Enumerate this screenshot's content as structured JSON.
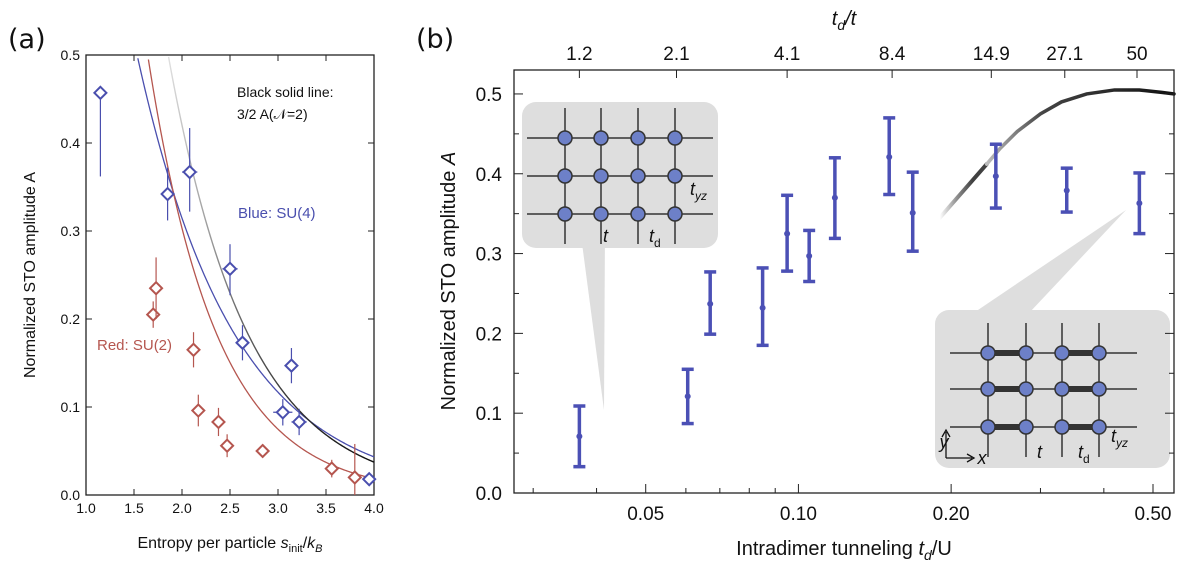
{
  "chart_data": [
    {
      "panel": "(a)",
      "type": "scatter",
      "xlabel_main": "Entropy per particle ",
      "xlabel_s": "s",
      "xlabel_sub": "init",
      "xlabel_slash": "/",
      "xlabel_k": "k",
      "xlabel_ksub": "B",
      "ylabel": "Normalized STO amplitude A",
      "xlim": [
        1.0,
        4.0
      ],
      "ylim": [
        0.0,
        0.5
      ],
      "xticks": [
        "1.0",
        "1.5",
        "2.0",
        "2.5",
        "3.0",
        "3.5",
        "4.0"
      ],
      "yticks": [
        "0.0",
        "0.1",
        "0.2",
        "0.3",
        "0.4",
        "0.5"
      ],
      "annotation_black_line1": "Black solid line:",
      "annotation_black_line2": "3/2 A(𝒩=2)",
      "series": [
        {
          "name": "Blue: SU(4)",
          "color": "#4a4fae",
          "points": [
            {
              "x": 1.15,
              "y": 0.457,
              "xerr": 0.07,
              "yerr_lo": 0.095,
              "yerr_hi": 0.0
            },
            {
              "x": 1.85,
              "y": 0.342,
              "xerr": 0.06,
              "yerr_lo": 0.03,
              "yerr_hi": 0.03
            },
            {
              "x": 2.08,
              "y": 0.367,
              "xerr": 0.08,
              "yerr_lo": 0.045,
              "yerr_hi": 0.05
            },
            {
              "x": 2.5,
              "y": 0.257,
              "xerr": 0.08,
              "yerr_lo": 0.03,
              "yerr_hi": 0.028
            },
            {
              "x": 2.63,
              "y": 0.173,
              "xerr": 0.06,
              "yerr_lo": 0.02,
              "yerr_hi": 0.02
            },
            {
              "x": 3.05,
              "y": 0.094,
              "xerr": 0.1,
              "yerr_lo": 0.015,
              "yerr_hi": 0.015
            },
            {
              "x": 3.14,
              "y": 0.147,
              "xerr": 0.07,
              "yerr_lo": 0.02,
              "yerr_hi": 0.02
            },
            {
              "x": 3.22,
              "y": 0.083,
              "xerr": 0.08,
              "yerr_lo": 0.015,
              "yerr_hi": 0.015
            },
            {
              "x": 3.95,
              "y": 0.018,
              "xerr": 0.06,
              "yerr_lo": 0.006,
              "yerr_hi": 0.006
            }
          ],
          "fit": {
            "amp": 0.8475,
            "rate": 0.991
          }
        },
        {
          "name": "Red: SU(2)",
          "color": "#b5564f",
          "points": [
            {
              "x": 1.7,
              "y": 0.205,
              "xerr": 0.04,
              "yerr_lo": 0.015,
              "yerr_hi": 0.015
            },
            {
              "x": 1.73,
              "y": 0.235,
              "xerr": 0.05,
              "yerr_lo": 0.035,
              "yerr_hi": 0.035
            },
            {
              "x": 2.12,
              "y": 0.165,
              "xerr": 0.04,
              "yerr_lo": 0.02,
              "yerr_hi": 0.02
            },
            {
              "x": 2.17,
              "y": 0.096,
              "xerr": 0.07,
              "yerr_lo": 0.018,
              "yerr_hi": 0.018
            },
            {
              "x": 2.38,
              "y": 0.083,
              "xerr": 0.07,
              "yerr_lo": 0.016,
              "yerr_hi": 0.016
            },
            {
              "x": 2.47,
              "y": 0.056,
              "xerr": 0.06,
              "yerr_lo": 0.013,
              "yerr_hi": 0.013
            },
            {
              "x": 2.84,
              "y": 0.05,
              "xerr": 0.07,
              "yerr_lo": 0.006,
              "yerr_hi": 0.006
            },
            {
              "x": 3.56,
              "y": 0.03,
              "xerr": 0.05,
              "yerr_lo": 0.01,
              "yerr_hi": 0.01
            },
            {
              "x": 3.8,
              "y": 0.02,
              "xerr": 0.05,
              "yerr_lo": 0.02,
              "yerr_hi": 0.038
            }
          ],
          "fit": {
            "amp": 1.2295,
            "rate": 1.4
          }
        },
        {
          "name": "Black solid line",
          "color": "#1a1a1a",
          "fit": {
            "amp": 1.4093,
            "rate": 1.21
          }
        }
      ]
    },
    {
      "panel": "(b)",
      "type": "scatter",
      "xlabel": "Intradimer tunneling t_d/U",
      "xlabel_main": "Intradimer tunneling ",
      "xlabel_t": "t",
      "xlabel_d": "d",
      "xlabel_rest": "/U",
      "ylabel_main": "Normalized STO amplitude ",
      "ylabel_A": "A",
      "top_label_t": "t",
      "top_label_d": "d",
      "top_label_rest": "/t",
      "x_scale": "log",
      "xlim": [
        0.0275,
        0.55
      ],
      "ylim": [
        0.0,
        0.53
      ],
      "xticks": [
        0.05,
        0.1,
        0.2,
        0.5
      ],
      "xtick_labels": [
        "0.05",
        "0.10",
        "0.20",
        "0.50"
      ],
      "yticks": [
        "0.0",
        "0.1",
        "0.2",
        "0.3",
        "0.4",
        "0.5"
      ],
      "top_ticks": [
        {
          "x": 0.037,
          "label": "1.2"
        },
        {
          "x": 0.0575,
          "label": "2.1"
        },
        {
          "x": 0.095,
          "label": "4.1"
        },
        {
          "x": 0.153,
          "label": "8.4"
        },
        {
          "x": 0.24,
          "label": "14.9"
        },
        {
          "x": 0.335,
          "label": "27.1"
        },
        {
          "x": 0.465,
          "label": "50"
        }
      ],
      "points": [
        {
          "x": 0.037,
          "y": 0.071,
          "lo": 0.033,
          "hi": 0.109
        },
        {
          "x": 0.0605,
          "y": 0.121,
          "lo": 0.087,
          "hi": 0.155
        },
        {
          "x": 0.067,
          "y": 0.237,
          "lo": 0.199,
          "hi": 0.277
        },
        {
          "x": 0.085,
          "y": 0.232,
          "lo": 0.185,
          "hi": 0.282
        },
        {
          "x": 0.095,
          "y": 0.325,
          "lo": 0.278,
          "hi": 0.373
        },
        {
          "x": 0.105,
          "y": 0.297,
          "lo": 0.265,
          "hi": 0.329
        },
        {
          "x": 0.118,
          "y": 0.37,
          "lo": 0.319,
          "hi": 0.42
        },
        {
          "x": 0.151,
          "y": 0.421,
          "lo": 0.374,
          "hi": 0.47
        },
        {
          "x": 0.168,
          "y": 0.351,
          "lo": 0.303,
          "hi": 0.402
        },
        {
          "x": 0.245,
          "y": 0.397,
          "lo": 0.357,
          "hi": 0.437
        },
        {
          "x": 0.338,
          "y": 0.379,
          "lo": 0.352,
          "hi": 0.407
        },
        {
          "x": 0.47,
          "y": 0.363,
          "lo": 0.325,
          "hi": 0.401
        }
      ],
      "theory_curve": [
        {
          "x": 0.235,
          "y": 0.412
        },
        {
          "x": 0.25,
          "y": 0.432
        },
        {
          "x": 0.27,
          "y": 0.453
        },
        {
          "x": 0.3,
          "y": 0.475
        },
        {
          "x": 0.33,
          "y": 0.49
        },
        {
          "x": 0.37,
          "y": 0.5
        },
        {
          "x": 0.42,
          "y": 0.505
        },
        {
          "x": 0.47,
          "y": 0.505
        },
        {
          "x": 0.52,
          "y": 0.502
        },
        {
          "x": 0.55,
          "y": 0.5
        }
      ],
      "inset_upper_labels": {
        "t": "t",
        "td": "t",
        "td_sub": "d",
        "tyz": "t",
        "tyz_sub": "yz"
      },
      "inset_lower_labels": {
        "t": "t",
        "td": "t",
        "td_sub": "d",
        "tyz": "t",
        "tyz_sub": "yz",
        "x": "x",
        "y": "y"
      },
      "point_color": "#4b50b5"
    }
  ]
}
